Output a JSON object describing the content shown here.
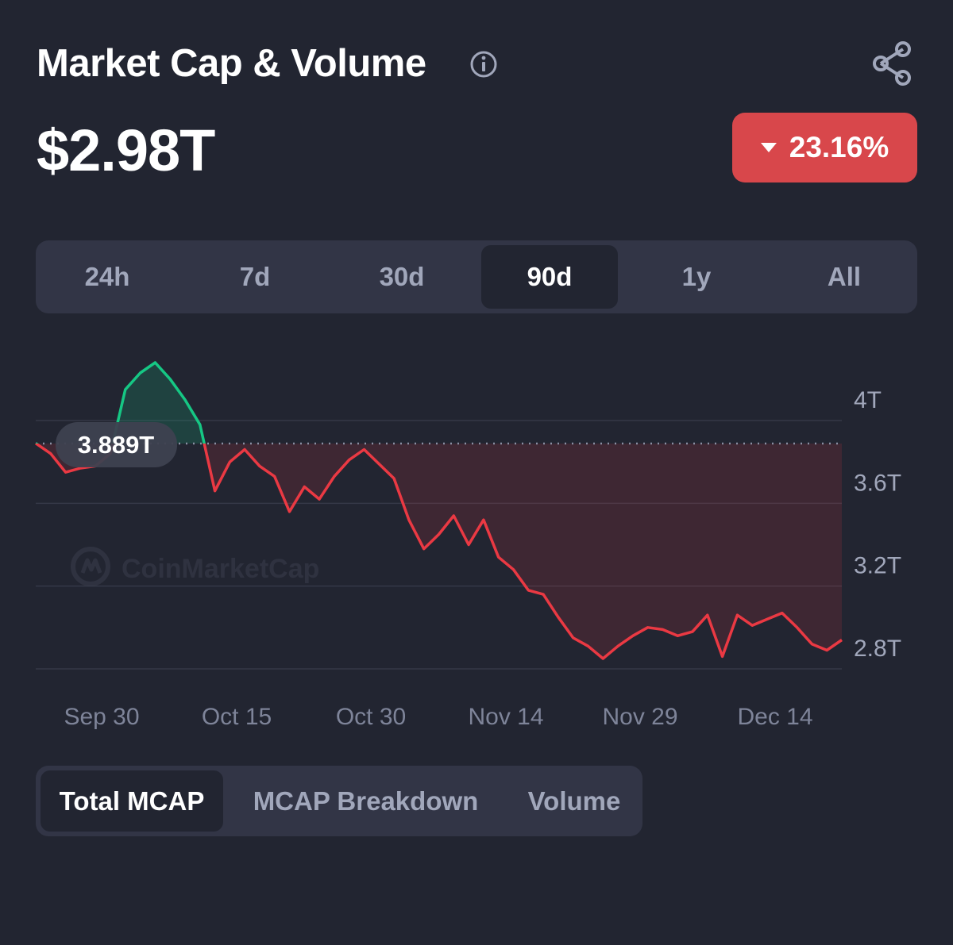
{
  "header": {
    "title": "Market Cap & Volume",
    "value": "$2.98T",
    "change": "23.16%",
    "change_direction": "down",
    "info_icon": "info-icon",
    "share_icon": "share-icon"
  },
  "range_tabs": [
    {
      "label": "24h",
      "active": false
    },
    {
      "label": "7d",
      "active": false
    },
    {
      "label": "30d",
      "active": false
    },
    {
      "label": "90d",
      "active": true
    },
    {
      "label": "1y",
      "active": false
    },
    {
      "label": "All",
      "active": false
    }
  ],
  "chart": {
    "reference_label": "3.889T",
    "watermark": "CoinMarketCap"
  },
  "chart_data": {
    "type": "line",
    "title": "",
    "reference_value": 3.889,
    "y_ticks": [
      {
        "label": "4T",
        "value": 4.0
      },
      {
        "label": "3.6T",
        "value": 3.6
      },
      {
        "label": "3.2T",
        "value": 3.2
      },
      {
        "label": "2.8T",
        "value": 2.8
      }
    ],
    "x_ticks": [
      "Sep 30",
      "Oct 15",
      "Oct 30",
      "Nov 14",
      "Nov 29",
      "Dec 14"
    ],
    "ylim": [
      2.78,
      4.3
    ],
    "x": [
      "Sep 22",
      "Sep 24",
      "Sep 26",
      "Sep 27",
      "Sep 28",
      "Sep 30",
      "Oct 2",
      "Oct 4",
      "Oct 6",
      "Oct 7",
      "Oct 8",
      "Oct 9",
      "Oct 10",
      "Oct 12",
      "Oct 13",
      "Oct 14",
      "Oct 15",
      "Oct 17",
      "Oct 19",
      "Oct 21",
      "Oct 23",
      "Oct 25",
      "Oct 27",
      "Oct 29",
      "Oct 31",
      "Nov 2",
      "Nov 4",
      "Nov 5",
      "Nov 6",
      "Nov 7",
      "Nov 9",
      "Nov 11",
      "Nov 13",
      "Nov 14",
      "Nov 16",
      "Nov 18",
      "Nov 20",
      "Nov 22",
      "Nov 24",
      "Nov 26",
      "Nov 28",
      "Nov 29",
      "Nov 30",
      "Dec 2",
      "Dec 4",
      "Dec 5",
      "Dec 6",
      "Dec 8",
      "Dec 10",
      "Dec 12",
      "Dec 14",
      "Dec 16",
      "Dec 18",
      "Dec 19",
      "Dec 20"
    ],
    "values": [
      3.89,
      3.84,
      3.75,
      3.77,
      3.78,
      3.84,
      4.15,
      4.23,
      4.28,
      4.2,
      4.1,
      3.98,
      3.66,
      3.8,
      3.86,
      3.78,
      3.73,
      3.56,
      3.68,
      3.62,
      3.73,
      3.81,
      3.86,
      3.79,
      3.72,
      3.52,
      3.38,
      3.45,
      3.54,
      3.4,
      3.52,
      3.34,
      3.28,
      3.18,
      3.16,
      3.05,
      2.95,
      2.91,
      2.85,
      2.91,
      2.96,
      3.0,
      2.99,
      2.96,
      2.98,
      3.06,
      2.86,
      3.06,
      3.01,
      3.04,
      3.07,
      3.0,
      2.92,
      2.89,
      2.94
    ],
    "up_color": "#16c784",
    "down_color": "#ea3943"
  },
  "bottom_tabs": [
    {
      "label": "Total MCAP",
      "active": true
    },
    {
      "label": "MCAP Breakdown",
      "active": false
    },
    {
      "label": "Volume",
      "active": false
    }
  ]
}
